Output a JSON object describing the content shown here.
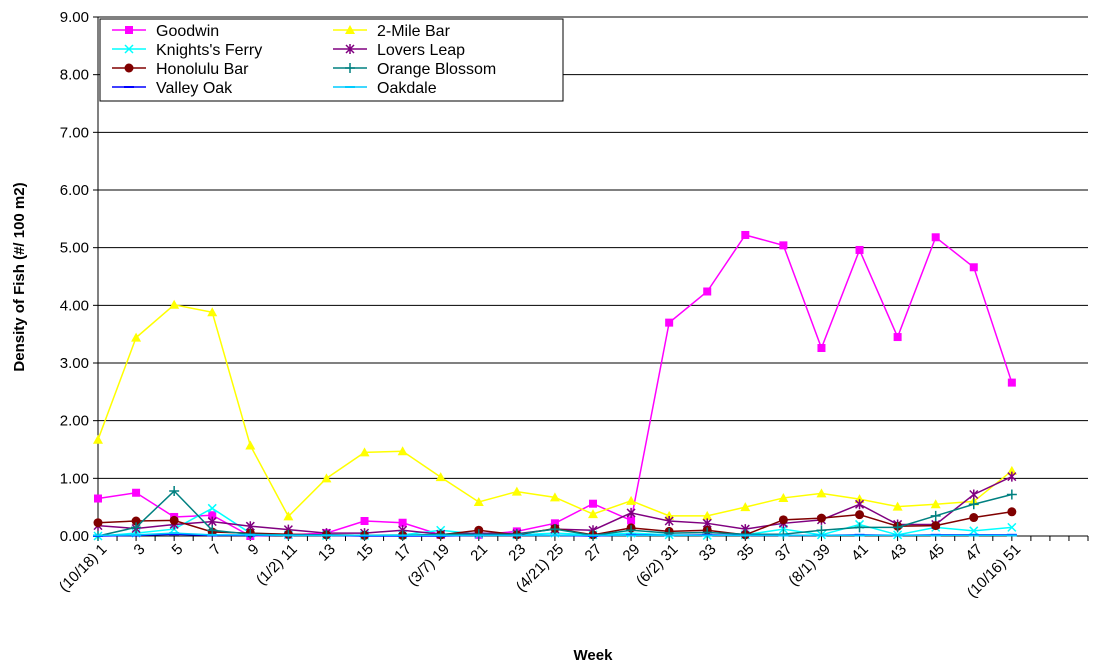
{
  "chart_data": {
    "type": "line",
    "xlabel": "Week",
    "ylabel": "Density of Fish (#/ 100 m2)",
    "ylim": [
      0,
      9
    ],
    "y_ticks": [
      "0.00",
      "1.00",
      "2.00",
      "3.00",
      "4.00",
      "5.00",
      "6.00",
      "7.00",
      "8.00",
      "9.00"
    ],
    "x_range": [
      1,
      53
    ],
    "x_tick_labels": [
      {
        "x": 1,
        "label": "(10/18) 1"
      },
      {
        "x": 3,
        "label": "3"
      },
      {
        "x": 5,
        "label": "5"
      },
      {
        "x": 7,
        "label": "7"
      },
      {
        "x": 9,
        "label": "9"
      },
      {
        "x": 11,
        "label": "(1/2) 11"
      },
      {
        "x": 13,
        "label": "13"
      },
      {
        "x": 15,
        "label": "15"
      },
      {
        "x": 17,
        "label": "17"
      },
      {
        "x": 19,
        "label": "(3/7) 19"
      },
      {
        "x": 21,
        "label": "21"
      },
      {
        "x": 23,
        "label": "23"
      },
      {
        "x": 25,
        "label": "(4/21) 25"
      },
      {
        "x": 27,
        "label": "27"
      },
      {
        "x": 29,
        "label": "29"
      },
      {
        "x": 31,
        "label": "(6/2) 31"
      },
      {
        "x": 33,
        "label": "33"
      },
      {
        "x": 35,
        "label": "35"
      },
      {
        "x": 37,
        "label": "37"
      },
      {
        "x": 39,
        "label": "(8/1) 39"
      },
      {
        "x": 41,
        "label": "41"
      },
      {
        "x": 43,
        "label": "43"
      },
      {
        "x": 45,
        "label": "45"
      },
      {
        "x": 47,
        "label": "47"
      },
      {
        "x": 49,
        "label": "(10/16) 51"
      }
    ],
    "grid": "horizontal",
    "legend_position": "top-left",
    "series": [
      {
        "name": "Goodwin",
        "color": "#ff00ff",
        "marker": "square",
        "points": [
          [
            1,
            0.65
          ],
          [
            3,
            0.75
          ],
          [
            5,
            0.33
          ],
          [
            7,
            0.36
          ],
          [
            9,
            0.0
          ],
          [
            11,
            0.02
          ],
          [
            13,
            0.05
          ],
          [
            15,
            0.26
          ],
          [
            17,
            0.23
          ],
          [
            19,
            0.02
          ],
          [
            21,
            0.02
          ],
          [
            23,
            0.08
          ],
          [
            25,
            0.22
          ],
          [
            27,
            0.56
          ],
          [
            29,
            0.27
          ],
          [
            31,
            3.7
          ],
          [
            33,
            4.24
          ],
          [
            35,
            5.22
          ],
          [
            37,
            5.04
          ],
          [
            39,
            3.26
          ],
          [
            41,
            4.96
          ],
          [
            43,
            3.45
          ],
          [
            45,
            5.18
          ],
          [
            47,
            4.66
          ],
          [
            49,
            2.66
          ]
        ]
      },
      {
        "name": "2-Mile Bar",
        "color": "#ffff00",
        "marker": "triangle",
        "points": [
          [
            1,
            1.67
          ],
          [
            3,
            3.44
          ],
          [
            5,
            4.01
          ],
          [
            7,
            3.88
          ],
          [
            9,
            1.57
          ],
          [
            11,
            0.34
          ],
          [
            13,
            1.0
          ],
          [
            15,
            1.45
          ],
          [
            17,
            1.47
          ],
          [
            19,
            1.02
          ],
          [
            21,
            0.59
          ],
          [
            23,
            0.77
          ],
          [
            25,
            0.67
          ],
          [
            27,
            0.38
          ],
          [
            29,
            0.61
          ],
          [
            31,
            0.35
          ],
          [
            33,
            0.35
          ],
          [
            35,
            0.5
          ],
          [
            37,
            0.66
          ],
          [
            39,
            0.74
          ],
          [
            41,
            0.64
          ],
          [
            43,
            0.51
          ],
          [
            45,
            0.55
          ],
          [
            47,
            0.6
          ],
          [
            49,
            1.13
          ]
        ]
      },
      {
        "name": "Knights's Ferry",
        "color": "#00ffff",
        "marker": "x",
        "points": [
          [
            1,
            0.0
          ],
          [
            3,
            0.05
          ],
          [
            5,
            0.12
          ],
          [
            7,
            0.48
          ],
          [
            9,
            0.05
          ],
          [
            11,
            0.02
          ],
          [
            13,
            0.01
          ],
          [
            15,
            0.01
          ],
          [
            17,
            0.02
          ],
          [
            19,
            0.1
          ],
          [
            21,
            0.03
          ],
          [
            23,
            0.02
          ],
          [
            25,
            0.05
          ],
          [
            27,
            0.02
          ],
          [
            29,
            0.05
          ],
          [
            31,
            0.02
          ],
          [
            33,
            0.01
          ],
          [
            35,
            0.02
          ],
          [
            37,
            0.12
          ],
          [
            39,
            0.02
          ],
          [
            41,
            0.2
          ],
          [
            43,
            0.02
          ],
          [
            45,
            0.15
          ],
          [
            47,
            0.09
          ],
          [
            49,
            0.15
          ]
        ]
      },
      {
        "name": "Lovers Leap",
        "color": "#800080",
        "marker": "star",
        "points": [
          [
            1,
            0.18
          ],
          [
            3,
            0.13
          ],
          [
            5,
            0.2
          ],
          [
            7,
            0.25
          ],
          [
            9,
            0.17
          ],
          [
            11,
            0.11
          ],
          [
            13,
            0.05
          ],
          [
            15,
            0.05
          ],
          [
            17,
            0.1
          ],
          [
            19,
            0.03
          ],
          [
            21,
            0.05
          ],
          [
            23,
            0.04
          ],
          [
            25,
            0.12
          ],
          [
            27,
            0.1
          ],
          [
            29,
            0.4
          ],
          [
            31,
            0.26
          ],
          [
            33,
            0.22
          ],
          [
            35,
            0.12
          ],
          [
            37,
            0.22
          ],
          [
            39,
            0.28
          ],
          [
            41,
            0.55
          ],
          [
            43,
            0.2
          ],
          [
            45,
            0.2
          ],
          [
            47,
            0.72
          ],
          [
            49,
            1.03
          ]
        ]
      },
      {
        "name": "Honolulu Bar",
        "color": "#800000",
        "marker": "circle",
        "points": [
          [
            1,
            0.23
          ],
          [
            3,
            0.26
          ],
          [
            5,
            0.27
          ],
          [
            7,
            0.07
          ],
          [
            9,
            0.05
          ],
          [
            11,
            0.03
          ],
          [
            13,
            0.02
          ],
          [
            15,
            0.01
          ],
          [
            17,
            0.01
          ],
          [
            19,
            0.02
          ],
          [
            21,
            0.1
          ],
          [
            23,
            0.02
          ],
          [
            25,
            0.13
          ],
          [
            27,
            0.02
          ],
          [
            29,
            0.14
          ],
          [
            31,
            0.08
          ],
          [
            33,
            0.1
          ],
          [
            35,
            0.02
          ],
          [
            37,
            0.28
          ],
          [
            39,
            0.31
          ],
          [
            41,
            0.37
          ],
          [
            43,
            0.17
          ],
          [
            45,
            0.18
          ],
          [
            47,
            0.32
          ],
          [
            49,
            0.42
          ]
        ]
      },
      {
        "name": "Orange Blossom",
        "color": "#008080",
        "marker": "plus",
        "points": [
          [
            1,
            0.0
          ],
          [
            3,
            0.15
          ],
          [
            5,
            0.78
          ],
          [
            7,
            0.1
          ],
          [
            9,
            0.03
          ],
          [
            11,
            0.02
          ],
          [
            13,
            0.02
          ],
          [
            15,
            0.01
          ],
          [
            17,
            0.01
          ],
          [
            19,
            0.03
          ],
          [
            21,
            0.03
          ],
          [
            23,
            0.03
          ],
          [
            25,
            0.12
          ],
          [
            27,
            0.01
          ],
          [
            29,
            0.1
          ],
          [
            31,
            0.05
          ],
          [
            33,
            0.06
          ],
          [
            35,
            0.03
          ],
          [
            37,
            0.03
          ],
          [
            39,
            0.1
          ],
          [
            41,
            0.15
          ],
          [
            43,
            0.15
          ],
          [
            45,
            0.35
          ],
          [
            47,
            0.55
          ],
          [
            49,
            0.72
          ]
        ]
      },
      {
        "name": "Valley Oak",
        "color": "#0000ff",
        "marker": "dash",
        "points": [
          [
            1,
            0.0
          ],
          [
            3,
            0.01
          ],
          [
            5,
            0.03
          ],
          [
            7,
            0.01
          ],
          [
            9,
            0.01
          ],
          [
            11,
            0.01
          ],
          [
            13,
            0.01
          ],
          [
            15,
            0.0
          ],
          [
            17,
            0.0
          ],
          [
            19,
            0.0
          ],
          [
            21,
            0.01
          ],
          [
            23,
            0.01
          ],
          [
            25,
            0.01
          ],
          [
            27,
            0.0
          ],
          [
            29,
            0.02
          ],
          [
            31,
            0.01
          ],
          [
            33,
            0.02
          ],
          [
            35,
            0.01
          ],
          [
            37,
            0.01
          ],
          [
            39,
            0.01
          ],
          [
            41,
            0.02
          ],
          [
            43,
            0.01
          ],
          [
            45,
            0.02
          ],
          [
            47,
            0.02
          ],
          [
            49,
            0.02
          ]
        ]
      },
      {
        "name": "Oakdale",
        "color": "#00ccff",
        "marker": "dash",
        "points": [
          [
            1,
            0.01
          ],
          [
            3,
            0.02
          ],
          [
            5,
            0.05
          ],
          [
            7,
            0.02
          ],
          [
            9,
            0.02
          ],
          [
            11,
            0.01
          ],
          [
            13,
            0.01
          ],
          [
            15,
            0.01
          ],
          [
            17,
            0.01
          ],
          [
            19,
            0.01
          ],
          [
            21,
            0.01
          ],
          [
            23,
            0.01
          ],
          [
            25,
            0.01
          ],
          [
            27,
            0.01
          ],
          [
            29,
            0.01
          ],
          [
            31,
            0.01
          ],
          [
            33,
            0.01
          ],
          [
            35,
            0.01
          ],
          [
            37,
            0.01
          ],
          [
            39,
            0.01
          ],
          [
            41,
            0.01
          ],
          [
            43,
            0.01
          ],
          [
            45,
            0.01
          ],
          [
            47,
            0.01
          ],
          [
            49,
            0.01
          ]
        ]
      }
    ]
  }
}
